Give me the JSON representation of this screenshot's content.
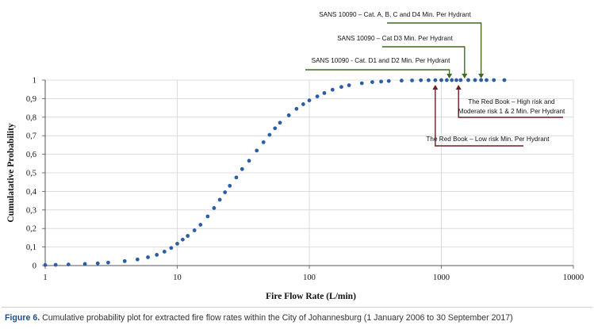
{
  "chart_data": {
    "type": "scatter",
    "xscale": "log",
    "xlim": [
      1,
      10000
    ],
    "ylim": [
      0,
      1
    ],
    "grid": true,
    "xlabel": "Fire Flow Rate (L/min)",
    "ylabel": "Cumulatative Probability",
    "xticks": [
      "1",
      "10",
      "100",
      "1000",
      "10000"
    ],
    "yticks": [
      "0",
      "0,1",
      "0,2",
      "0,3",
      "0,4",
      "0,5",
      "0,6",
      "0,7",
      "0,8",
      "0,9",
      "1"
    ],
    "series": [
      {
        "color": "#2b5ea7",
        "x": [
          1,
          1.2,
          1.5,
          2,
          2.5,
          3,
          4,
          5,
          6,
          7,
          8,
          9,
          10,
          11,
          12,
          13.5,
          15,
          17,
          19,
          21,
          23,
          25,
          28,
          31,
          35,
          40,
          45,
          50,
          55,
          60,
          70,
          80,
          90,
          100,
          115,
          130,
          150,
          175,
          200,
          250,
          300,
          350,
          400,
          500,
          600,
          700,
          800,
          900,
          1000,
          1100,
          1200,
          1300,
          1400,
          1600,
          1800,
          2000,
          2200,
          2500,
          3000
        ],
        "y": [
          0.003,
          0.004,
          0.006,
          0.009,
          0.012,
          0.016,
          0.024,
          0.033,
          0.045,
          0.058,
          0.075,
          0.095,
          0.118,
          0.14,
          0.16,
          0.19,
          0.22,
          0.265,
          0.31,
          0.355,
          0.395,
          0.43,
          0.475,
          0.52,
          0.565,
          0.62,
          0.665,
          0.705,
          0.74,
          0.77,
          0.81,
          0.845,
          0.87,
          0.89,
          0.912,
          0.93,
          0.948,
          0.963,
          0.972,
          0.983,
          0.989,
          0.992,
          0.995,
          0.997,
          0.998,
          0.999,
          0.9993,
          0.9995,
          0.9997,
          0.9998,
          0.9998,
          0.9999,
          0.9999,
          1,
          1,
          1,
          1,
          1,
          1
        ]
      }
    ],
    "annotations": [
      {
        "text": "SANS 10090 – Cat. A, B, C and D4 Min. Per Hydrant",
        "x": 2000,
        "color": "#3d6b1f",
        "side": "top"
      },
      {
        "text": "SANS 10090 – Cat D3 Min. Per Hydrant",
        "x": 1500,
        "color": "#3d6b1f",
        "side": "top"
      },
      {
        "text": "SANS 10090 - Cat. D1 and D2 Min. Per Hydrant",
        "x": 1150,
        "color": "#3d6b1f",
        "side": "top"
      },
      {
        "text": "The Red Book – High risk and Moderate risk 1 & 2 Min. Per Hydrant",
        "x": 1350,
        "color": "#6b1f24",
        "side": "bottom"
      },
      {
        "text": "The Red Book – Low risk Min. Per Hydrant",
        "x": 900,
        "color": "#6b1f24",
        "side": "bottom"
      }
    ]
  },
  "caption": {
    "label": "Figure 6.",
    "text": " Cumulative probability plot for extracted fire flow rates within the City of Johannesburg (1 January 2006 to 30 September 2017)"
  }
}
